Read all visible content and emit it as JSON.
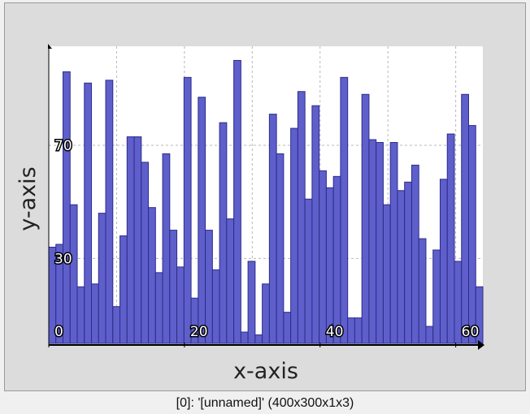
{
  "caption": "[0]: '[unnamed]' (400x300x1x3)",
  "chart_data": {
    "type": "bar",
    "xlabel": "x-axis",
    "ylabel": "y-axis",
    "xlim": [
      0,
      64
    ],
    "ylim": [
      0,
      105
    ],
    "x_ticks": [
      "0",
      "20",
      "40",
      "60"
    ],
    "x_tick_values": [
      0,
      20,
      40,
      60
    ],
    "y_ticks": [
      "30",
      "70"
    ],
    "y_tick_values": [
      30,
      70
    ],
    "grid": true,
    "colors": {
      "bar": "#5f5fcb",
      "bar_edge": "#2c2c8a",
      "grid": "#b8b8b8",
      "plot_bg": "#ffffff"
    },
    "values": [
      34,
      35,
      96,
      49,
      20,
      92,
      21,
      46,
      93,
      13,
      38,
      73,
      73,
      64,
      48,
      25,
      67,
      40,
      27,
      94,
      16,
      87,
      40,
      26,
      78,
      44,
      100,
      4,
      29,
      3,
      21,
      81,
      67,
      11,
      76,
      89,
      51,
      84,
      61,
      55,
      59,
      94,
      9,
      9,
      88,
      72,
      71,
      49,
      71,
      54,
      57,
      63,
      37,
      6,
      33,
      58,
      74,
      29,
      88,
      77,
      20
    ]
  }
}
